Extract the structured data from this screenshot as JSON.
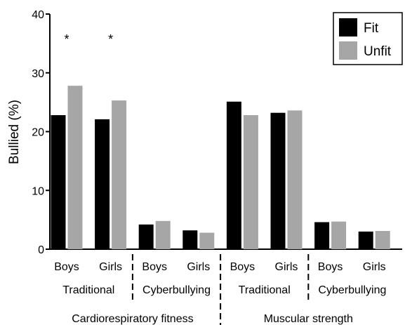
{
  "chart_data": {
    "type": "bar",
    "ylabel": "Bullied (%)",
    "ylim": [
      0,
      40
    ],
    "yticks": [
      0,
      10,
      20,
      30,
      40
    ],
    "legend": {
      "placement": "top-right",
      "entries": [
        {
          "name": "Fit",
          "color": "#000000"
        },
        {
          "name": "Unfit",
          "color": "#a6a6a6"
        }
      ]
    },
    "categories": [
      "Boys",
      "Girls",
      "Boys",
      "Girls",
      "Boys",
      "Girls",
      "Boys",
      "Girls"
    ],
    "series": [
      {
        "name": "Fit",
        "color": "#000000",
        "values": [
          22.8,
          22.1,
          4.2,
          3.2,
          25.1,
          23.2,
          4.6,
          3.0
        ]
      },
      {
        "name": "Unfit",
        "color": "#a6a6a6",
        "values": [
          27.8,
          25.3,
          4.8,
          2.8,
          22.8,
          23.6,
          4.7,
          3.1
        ]
      }
    ],
    "group_labels": [
      "Traditional",
      "Cyberbullying",
      "Traditional",
      "Cyberbullying"
    ],
    "panel_labels": [
      "Cardiorespiratory fitness",
      "Muscular strength"
    ],
    "annotations": [
      {
        "text": "*",
        "category_index": 0
      },
      {
        "text": "*",
        "category_index": 1
      }
    ]
  }
}
